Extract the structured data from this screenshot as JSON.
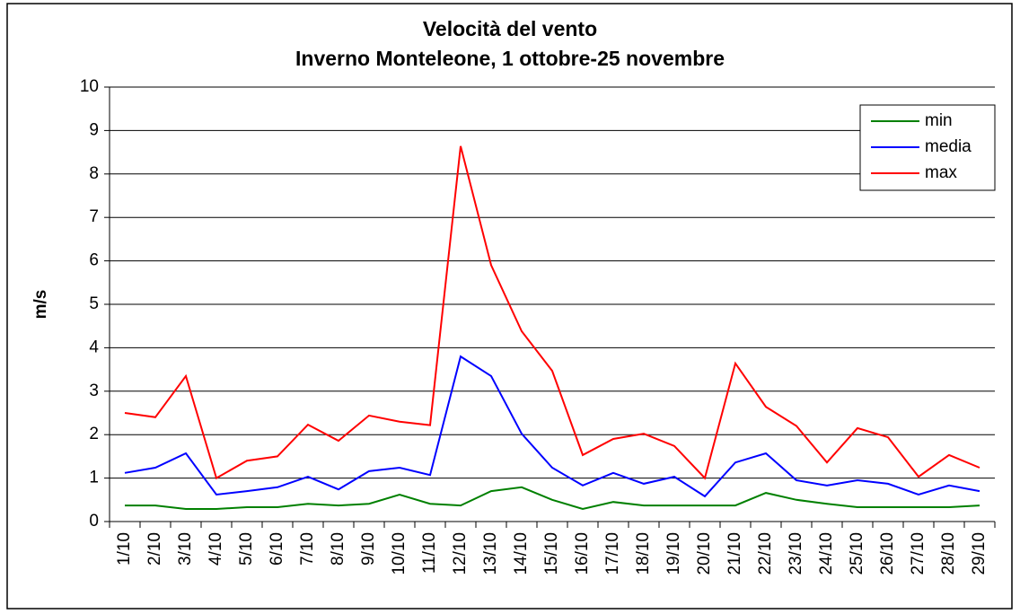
{
  "chart_data": {
    "type": "line",
    "title": "Velocità del vento",
    "subtitle": "Inverno Monteleone, 1 ottobre-25 novembre",
    "y_label": "m/s",
    "categories": [
      "1/10",
      "2/10",
      "3/10",
      "4/10",
      "5/10",
      "6/10",
      "7/10",
      "8/10",
      "9/10",
      "10/10",
      "11/10",
      "12/10",
      "13/10",
      "14/10",
      "15/10",
      "16/10",
      "17/10",
      "18/10",
      "19/10",
      "20/10",
      "21/10",
      "22/10",
      "23/10",
      "24/10",
      "25/10",
      "26/10",
      "27/10",
      "28/10",
      "29/10"
    ],
    "series": [
      {
        "name": "min",
        "color": "#008000",
        "values": [
          0.37,
          0.37,
          0.29,
          0.29,
          0.33,
          0.33,
          0.41,
          0.37,
          0.41,
          0.62,
          0.41,
          0.37,
          0.7,
          0.79,
          0.5,
          0.29,
          0.45,
          0.37,
          0.37,
          0.37,
          0.37,
          0.66,
          0.5,
          0.41,
          0.33,
          0.33,
          0.33,
          0.33,
          0.37
        ]
      },
      {
        "name": "media",
        "color": "#0000ff",
        "values": [
          1.12,
          1.24,
          1.57,
          0.62,
          0.7,
          0.79,
          1.03,
          0.74,
          1.16,
          1.24,
          1.07,
          3.8,
          3.35,
          2.02,
          1.24,
          0.83,
          1.12,
          0.87,
          1.03,
          0.58,
          1.36,
          1.57,
          0.95,
          0.83,
          0.95,
          0.87,
          0.62,
          0.83,
          0.7
        ]
      },
      {
        "name": "max",
        "color": "#ff0000",
        "values": [
          2.5,
          2.4,
          3.35,
          1.0,
          1.4,
          1.5,
          2.23,
          1.86,
          2.44,
          2.3,
          2.22,
          8.64,
          5.9,
          4.38,
          3.47,
          1.53,
          1.9,
          2.02,
          1.74,
          1.0,
          3.64,
          2.64,
          2.2,
          1.36,
          2.15,
          1.94,
          1.03,
          1.53,
          1.24
        ]
      }
    ],
    "ylim": [
      0,
      10
    ],
    "yticks": [
      0,
      1,
      2,
      3,
      4,
      5,
      6,
      7,
      8,
      9,
      10
    ],
    "grid": true,
    "legend": "top-right"
  }
}
